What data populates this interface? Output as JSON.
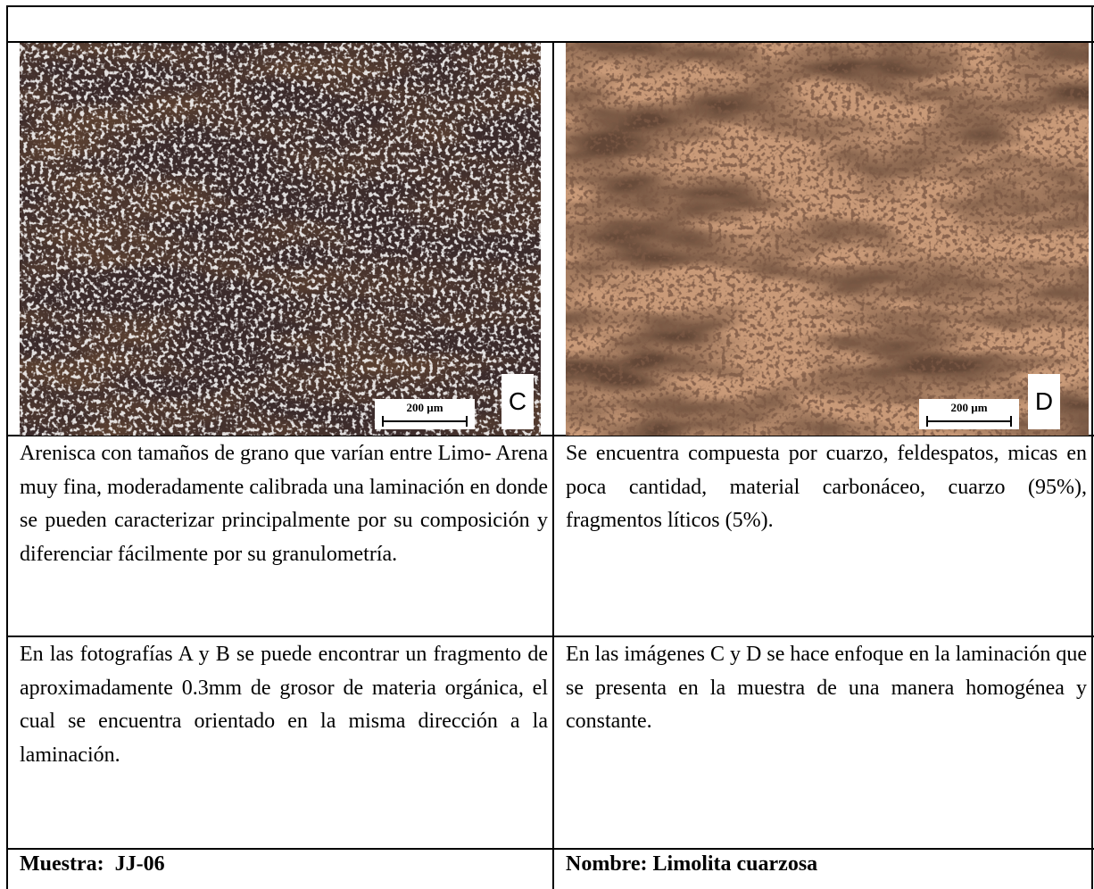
{
  "panels": [
    {
      "scale": "200 µm",
      "label": "C"
    },
    {
      "scale": "200 µm",
      "label": "D"
    }
  ],
  "rows": [
    [
      "Arenisca con tamaños de grano que varían entre Limo- Arena muy fina, moderadamente calibrada una laminación en donde se pueden caracterizar principalmente por su composición y diferenciar fácilmente por su granulometría.",
      "Se encuentra compuesta por cuarzo, feldespatos, micas en poca cantidad, material carbonáceo, cuarzo (95%), fragmentos líticos (5%)."
    ],
    [
      "En las fotografías A y B se puede encontrar un fragmento de aproximadamente 0.3mm de grosor de materia orgánica, el cual se encuentra orientado en la misma dirección a la laminación.",
      "En las imágenes C y D se hace enfoque en la laminación que se presenta en la muestra de una manera homogénea y constante."
    ]
  ],
  "footer": [
    "Muestra:  JJ-06",
    "Nombre: Limolita cuarzosa"
  ]
}
